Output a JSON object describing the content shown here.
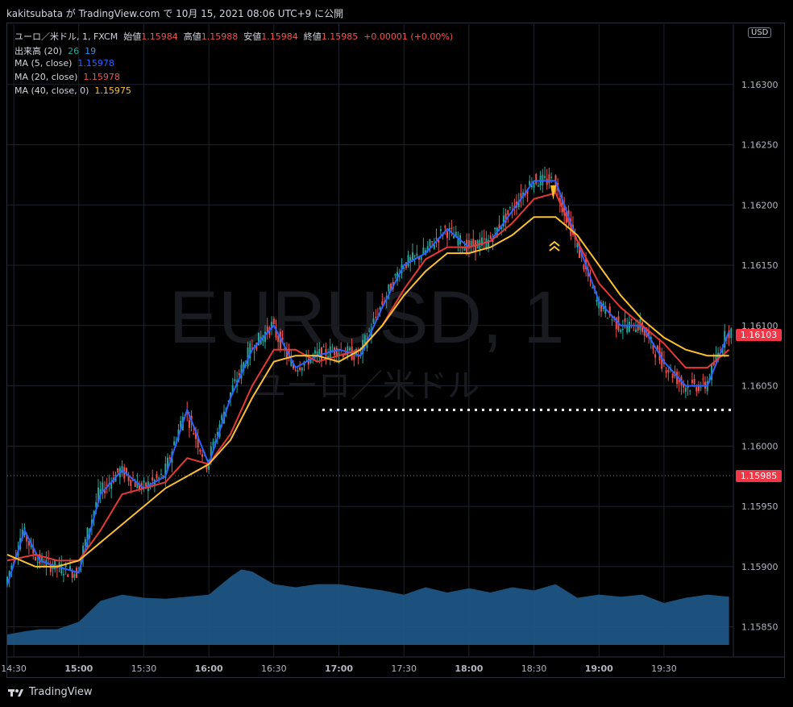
{
  "publisher": "kakitsubata が TradingView.com で 10月 15, 2021 08:06 UTC+9 に公開",
  "legend": {
    "symbol": "ユーロ／米ドル, 1, FXCM",
    "open_label": "始値",
    "open": "1.15984",
    "high_label": "高値",
    "high": "1.15988",
    "low_label": "安値",
    "low": "1.15984",
    "close_label": "終値",
    "close": "1.15985",
    "change": "+0.00001 (+0.00%)",
    "volume_label": "出来高 (20)",
    "volume_a": "26",
    "volume_b": "19",
    "ma5_label": "MA (5, close)",
    "ma5": "1.15978",
    "ma20_label": "MA (20, close)",
    "ma20": "1.15978",
    "ma40_label": "MA (40, close, 0)",
    "ma40": "1.15975"
  },
  "watermark": {
    "symbol": "EURUSD, 1",
    "name": "ユーロ／米ドル"
  },
  "currency_button": "USD",
  "price_tags": {
    "last": "1.16103",
    "crosshair": "1.15985"
  },
  "brand": "TradingView",
  "colors": {
    "up": "#26a69a",
    "down": "#ef5350",
    "ma5": "#2962ff",
    "ma20": "#e53935",
    "ma40": "#fbc02d",
    "volume": "#1e5a8a",
    "last": "#f23645"
  },
  "chart_data": {
    "type": "line",
    "title": "ユーロ／米ドル, 1, FXCM",
    "y_ticks": [
      "1.15850",
      "1.15900",
      "1.15950",
      "1.16000",
      "1.16050",
      "1.16100",
      "1.16150",
      "1.16200",
      "1.16250",
      "1.16300"
    ],
    "x_ticks": [
      "14:30",
      "15:00",
      "15:30",
      "16:00",
      "16:30",
      "17:00",
      "17:30",
      "18:00",
      "18:30",
      "19:00",
      "19:30"
    ],
    "ylim": [
      1.15825,
      1.1635
    ],
    "xlim_minutes": [
      867,
      1202
    ],
    "support_level": 1.1603,
    "series": [
      {
        "name": "MA (5, close)",
        "color": "#2962ff",
        "x": [
          867,
          875,
          882,
          890,
          900,
          910,
          920,
          930,
          940,
          950,
          960,
          970,
          980,
          990,
          1000,
          1010,
          1020,
          1030,
          1040,
          1050,
          1060,
          1070,
          1080,
          1090,
          1100,
          1110,
          1120,
          1130,
          1140,
          1150,
          1160,
          1170,
          1180,
          1190,
          1200
        ],
        "y": [
          1.15885,
          1.1593,
          1.15905,
          1.159,
          1.15895,
          1.1596,
          1.1598,
          1.15965,
          1.15975,
          1.1603,
          1.15985,
          1.1604,
          1.1608,
          1.161,
          1.16065,
          1.16075,
          1.1608,
          1.16075,
          1.16115,
          1.1615,
          1.1616,
          1.1618,
          1.16165,
          1.1617,
          1.16195,
          1.1622,
          1.1622,
          1.1617,
          1.1612,
          1.161,
          1.161,
          1.1607,
          1.1605,
          1.1605,
          1.16095
        ]
      },
      {
        "name": "MA (20, close)",
        "color": "#e53935",
        "x": [
          867,
          880,
          890,
          900,
          910,
          920,
          930,
          940,
          950,
          960,
          970,
          980,
          990,
          1000,
          1010,
          1020,
          1030,
          1040,
          1050,
          1060,
          1070,
          1080,
          1090,
          1100,
          1110,
          1120,
          1130,
          1140,
          1150,
          1160,
          1170,
          1180,
          1190,
          1200
        ],
        "y": [
          1.15905,
          1.1591,
          1.15905,
          1.15905,
          1.1593,
          1.1596,
          1.15965,
          1.1597,
          1.1599,
          1.15985,
          1.1601,
          1.1605,
          1.1608,
          1.1608,
          1.1607,
          1.16075,
          1.1608,
          1.161,
          1.1613,
          1.16155,
          1.16165,
          1.16165,
          1.1617,
          1.16185,
          1.16205,
          1.1621,
          1.1617,
          1.16135,
          1.16115,
          1.161,
          1.16085,
          1.16065,
          1.16065,
          1.1608
        ]
      },
      {
        "name": "MA (40, close, 0)",
        "color": "#fbc02d",
        "x": [
          867,
          880,
          890,
          900,
          910,
          920,
          930,
          940,
          950,
          960,
          970,
          980,
          990,
          1000,
          1010,
          1020,
          1030,
          1040,
          1050,
          1060,
          1070,
          1080,
          1090,
          1100,
          1110,
          1120,
          1130,
          1140,
          1150,
          1160,
          1170,
          1180,
          1190,
          1200
        ],
        "y": [
          1.1591,
          1.159,
          1.159,
          1.15905,
          1.1592,
          1.15935,
          1.1595,
          1.15965,
          1.15975,
          1.15985,
          1.16005,
          1.1604,
          1.1607,
          1.16075,
          1.16075,
          1.1607,
          1.1608,
          1.161,
          1.16125,
          1.16145,
          1.1616,
          1.1616,
          1.16165,
          1.16175,
          1.1619,
          1.1619,
          1.16175,
          1.1615,
          1.16125,
          1.16105,
          1.1609,
          1.1608,
          1.16075,
          1.16075
        ]
      }
    ],
    "volume": {
      "x": [
        867,
        875,
        882,
        890,
        900,
        910,
        920,
        930,
        940,
        950,
        960,
        970,
        975,
        980,
        990,
        1000,
        1010,
        1020,
        1030,
        1040,
        1050,
        1060,
        1070,
        1080,
        1090,
        1100,
        1110,
        1120,
        1130,
        1140,
        1150,
        1160,
        1170,
        1180,
        1190,
        1200
      ],
      "y": [
        0.1,
        0.13,
        0.15,
        0.15,
        0.22,
        0.42,
        0.48,
        0.45,
        0.44,
        0.46,
        0.48,
        0.65,
        0.72,
        0.7,
        0.58,
        0.55,
        0.58,
        0.58,
        0.55,
        0.52,
        0.48,
        0.55,
        0.5,
        0.54,
        0.5,
        0.55,
        0.52,
        0.58,
        0.45,
        0.48,
        0.46,
        0.48,
        0.4,
        0.45,
        0.48,
        0.46
      ]
    }
  }
}
